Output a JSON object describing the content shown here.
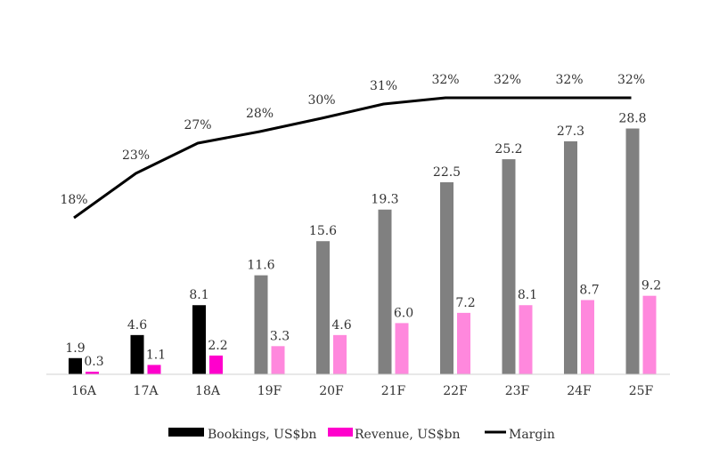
{
  "chart_data": {
    "type": "bar",
    "categories": [
      "16A",
      "17A",
      "18A",
      "19F",
      "20F",
      "21F",
      "22F",
      "23F",
      "24F",
      "25F"
    ],
    "series": [
      {
        "name": "Bookings, US$bn",
        "values": [
          1.9,
          4.6,
          8.1,
          11.6,
          15.6,
          19.3,
          22.5,
          25.2,
          27.3,
          28.8
        ],
        "labels": [
          "1.9",
          "4.6",
          "8.1",
          "11.6",
          "15.6",
          "19.3",
          "22.5",
          "25.2",
          "27.3",
          "28.8"
        ],
        "actual_color": "#000000",
        "forecast_color": "#808080"
      },
      {
        "name": "Revenue, US$bn",
        "values": [
          0.3,
          1.1,
          2.2,
          3.3,
          4.6,
          6.0,
          7.2,
          8.1,
          8.7,
          9.2
        ],
        "labels": [
          "0.3",
          "1.1",
          "2.2",
          "3.3",
          "4.6",
          "6.0",
          "7.2",
          "8.1",
          "8.7",
          "9.2"
        ],
        "actual_color": "#ff00cc",
        "forecast_color": "#ff88dd"
      },
      {
        "name": "Margin",
        "type": "line",
        "values": [
          18,
          23,
          27,
          28,
          30,
          31,
          32,
          32,
          32,
          32
        ],
        "labels": [
          "18%",
          "23%",
          "27%",
          "28%",
          "30%",
          "31%",
          "32%",
          "32%",
          "32%",
          "32%"
        ],
        "color": "#000000"
      }
    ],
    "actual_count": 3,
    "legend_position": "bottom",
    "grid": false,
    "title": "",
    "xlabel": "",
    "ylabel": ""
  }
}
